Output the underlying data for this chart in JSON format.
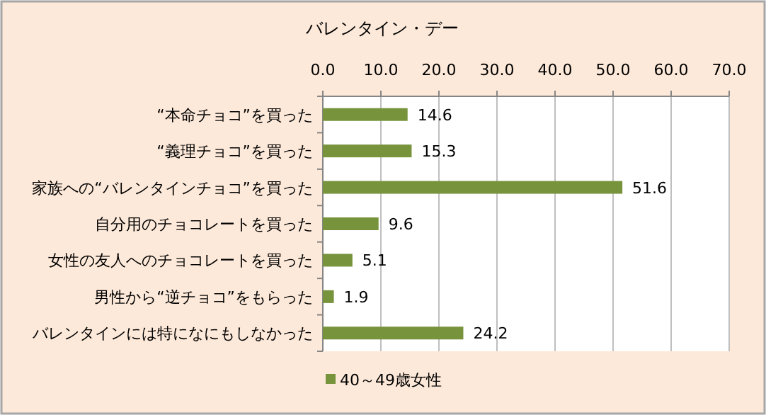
{
  "chart_data": {
    "type": "bar",
    "orientation": "horizontal",
    "title": "バレンタイン・デー",
    "categories": [
      "“本命チョコ”を買った",
      "“義理チョコ”を買った",
      "家族への“バレンタインチョコ”を買った",
      "自分用のチョコレートを買った",
      "女性の友人へのチョコレートを買った",
      "男性から“逆チョコ”をもらった",
      "バレンタインには特になにもしなかった"
    ],
    "series": [
      {
        "name": "40～49歳女性",
        "color": "#77933c",
        "values": [
          14.6,
          15.3,
          51.6,
          9.6,
          5.1,
          1.9,
          24.2
        ]
      }
    ],
    "xlim": [
      0,
      70
    ],
    "xticks": [
      {
        "value": 0,
        "label": "0.0"
      },
      {
        "value": 10,
        "label": "10.0"
      },
      {
        "value": 20,
        "label": "20.0"
      },
      {
        "value": 30,
        "label": "30.0"
      },
      {
        "value": 40,
        "label": "40.0"
      },
      {
        "value": 50,
        "label": "50.0"
      },
      {
        "value": 60,
        "label": "60.0"
      },
      {
        "value": 70,
        "label": "70.0"
      }
    ],
    "grid": "x",
    "legend": "bottom",
    "data_labels": true
  }
}
